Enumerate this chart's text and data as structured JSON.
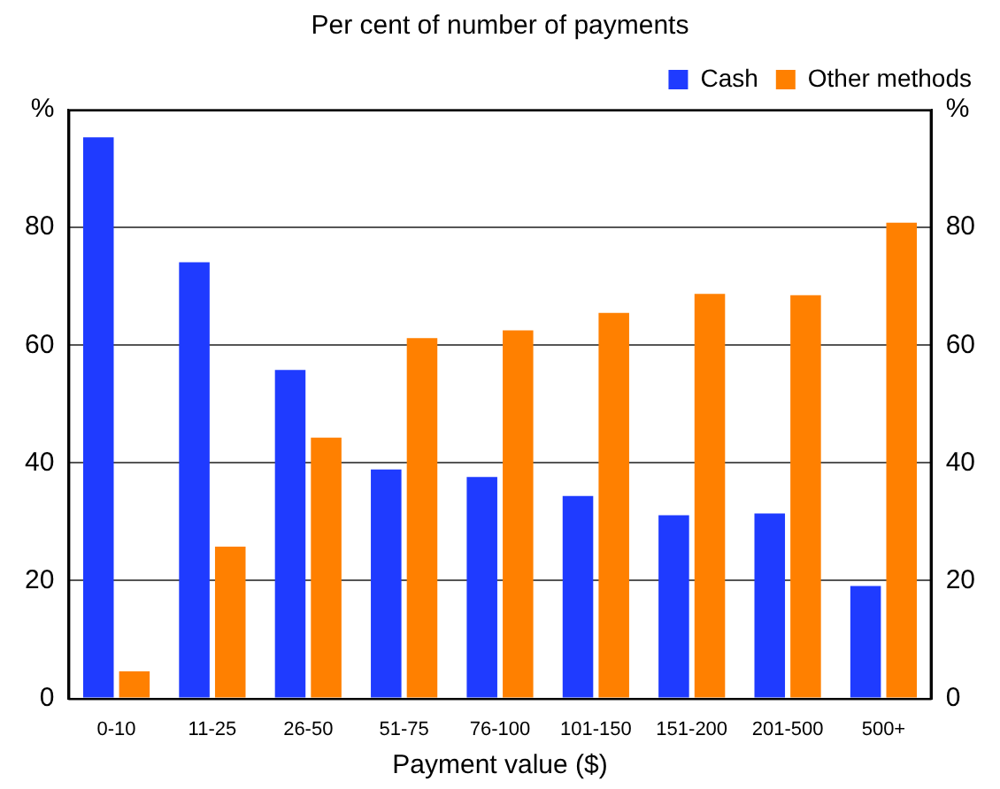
{
  "chart_data": {
    "type": "bar",
    "title": "Per cent of number of payments",
    "xlabel": "Payment value ($)",
    "categories": [
      "0-10",
      "11-25",
      "26-50",
      "51-75",
      "76-100",
      "101-150",
      "151-200",
      "201-500",
      "500+"
    ],
    "series": [
      {
        "name": "Cash",
        "color": "#1f3bff",
        "values": [
          95.3,
          74.1,
          55.8,
          38.9,
          37.6,
          34.4,
          31.1,
          31.4,
          19.1
        ]
      },
      {
        "name": "Other methods",
        "color": "#ff8000",
        "values": [
          4.6,
          25.8,
          44.3,
          61.2,
          62.5,
          65.5,
          68.7,
          68.5,
          80.8
        ]
      }
    ],
    "ylim": [
      0,
      100
    ],
    "yticks": [
      0,
      20,
      40,
      60,
      80,
      {
        "value": 100,
        "label": "%"
      }
    ],
    "y2lim": [
      0,
      100
    ],
    "y2ticks": [
      0,
      20,
      40,
      60,
      80,
      {
        "value": 100,
        "label": "%"
      }
    ],
    "grid": "y",
    "legend": "top right"
  }
}
